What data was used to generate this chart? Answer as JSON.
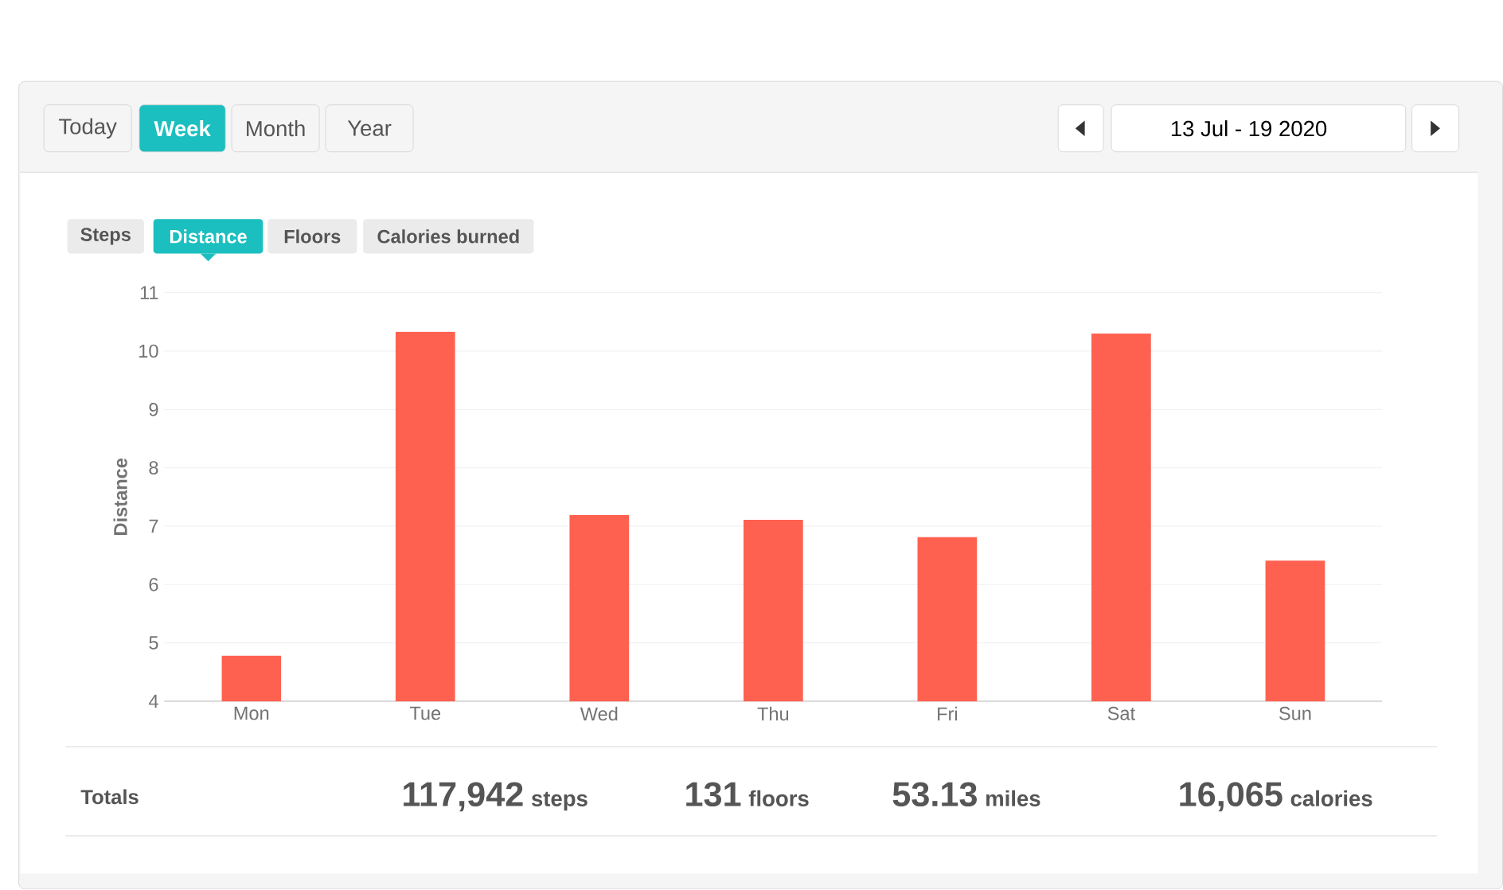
{
  "chart_data": {
    "type": "bar",
    "ylabel": "Distance",
    "categories": [
      "Mon",
      "Tue",
      "Wed",
      "Thu",
      "Fri",
      "Sat",
      "Sun"
    ],
    "values": [
      4.78,
      10.33,
      7.19,
      7.11,
      6.81,
      10.3,
      6.41
    ],
    "color": "#ff6150",
    "ylim": [
      4,
      11
    ],
    "yticks": [
      4,
      5,
      6,
      7,
      8,
      9,
      10,
      11
    ],
    "grid": "y",
    "annotations": [
      "Today",
      "Week",
      "Month",
      "Year",
      "13 Jul - 19 2020",
      "Steps",
      "Distance",
      "Floors",
      "Calories burned",
      "Totals",
      "117,942",
      "steps",
      "131",
      "floors",
      "53.13",
      "miles",
      "16,065",
      "calories"
    ]
  }
}
